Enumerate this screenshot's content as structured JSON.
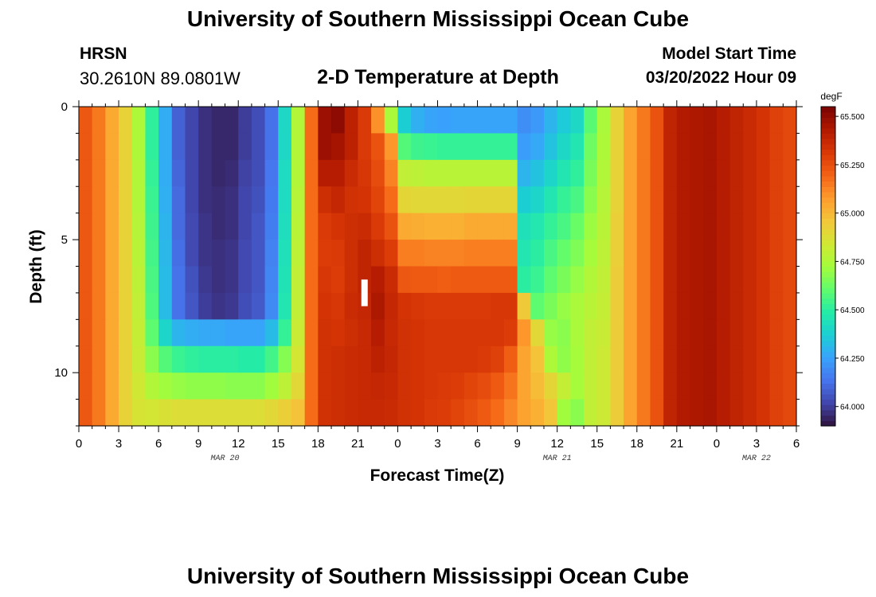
{
  "header": {
    "title": "University of Southern Mississippi Ocean Cube",
    "station": "HRSN",
    "coordinates": "30.2610N  89.0801W",
    "subtitle": "2-D Temperature at Depth",
    "model_start_label": "Model Start Time",
    "model_start_value": "03/20/2022 Hour 09"
  },
  "footer": {
    "title": "University of Southern Mississippi Ocean Cube"
  },
  "chart_data": {
    "type": "heatmap",
    "title": "2-D Temperature at Depth",
    "xlabel": "Forecast Time(Z)",
    "ylabel": "Depth (ft)",
    "x_range_hours": [
      0,
      54
    ],
    "x_hours": [
      0,
      1,
      2,
      3,
      4,
      5,
      6,
      7,
      8,
      9,
      10,
      11,
      12,
      13,
      14,
      15,
      16,
      17,
      18,
      19,
      20,
      21,
      22,
      23,
      24,
      25,
      26,
      27,
      28,
      29,
      30,
      31,
      32,
      33,
      34,
      35,
      36,
      37,
      38,
      39,
      40,
      41,
      42,
      43,
      44,
      45,
      46,
      47,
      48,
      49,
      50,
      51,
      52,
      53
    ],
    "x_tick_labels": [
      "0",
      "3",
      "6",
      "9",
      "12",
      "15",
      "18",
      "21",
      "0",
      "3",
      "6",
      "9",
      "12",
      "15",
      "18",
      "21",
      "0",
      "3",
      "6"
    ],
    "date_labels": [
      {
        "label": "MAR 20",
        "hour": 11
      },
      {
        "label": "MAR 21",
        "hour": 36
      },
      {
        "label": "MAR 22",
        "hour": 51
      }
    ],
    "y_range_ft": [
      0,
      12
    ],
    "y_reversed": true,
    "y_tick_labels": [
      "0",
      "5",
      "10"
    ],
    "depth_levels_ft": [
      0.5,
      1.5,
      2.5,
      3.5,
      4.5,
      5.5,
      6.5,
      7.5,
      8.5,
      9.5,
      10.5,
      11.5
    ],
    "colorbar": {
      "unit": "degF",
      "min": 63.9,
      "max": 65.55,
      "tick_labels": [
        "65.500",
        "65.250",
        "65.000",
        "64.750",
        "64.500",
        "64.250",
        "64.000"
      ],
      "tick_values": [
        65.5,
        65.25,
        65.0,
        64.75,
        64.5,
        64.25,
        64.0
      ],
      "colors": [
        "#30123b",
        "#4145ab",
        "#4675ed",
        "#39a2fc",
        "#1bcfd4",
        "#24eca6",
        "#61fc6c",
        "#a4fc3b",
        "#d1e834",
        "#f3c63a",
        "#fe9b2d",
        "#f36315",
        "#d93806",
        "#b11901",
        "#7a0403"
      ]
    },
    "temperature_degF": [
      [
        65.23,
        65.15,
        65.04,
        64.92,
        64.75,
        64.51,
        64.28,
        64.09,
        64.02,
        63.97,
        63.95,
        63.95,
        64.0,
        64.04,
        64.13,
        64.41,
        64.76,
        65.18,
        65.48,
        65.51,
        65.4,
        65.31,
        65.1,
        64.74,
        64.37,
        64.29,
        64.26,
        64.25,
        64.26,
        64.26,
        64.26,
        64.26,
        64.26,
        64.2,
        64.23,
        64.3,
        64.36,
        64.41,
        64.59,
        64.74,
        64.92,
        65.06,
        65.15,
        65.24,
        65.39,
        65.43,
        65.44,
        65.45,
        65.42,
        65.39,
        65.36,
        65.33,
        65.29,
        65.27
      ],
      [
        65.23,
        65.15,
        65.04,
        64.92,
        64.75,
        64.51,
        64.28,
        64.09,
        64.02,
        63.97,
        63.95,
        63.95,
        64.0,
        64.04,
        64.13,
        64.41,
        64.76,
        65.18,
        65.48,
        65.46,
        65.4,
        65.31,
        65.24,
        65.09,
        64.58,
        64.54,
        64.53,
        64.52,
        64.52,
        64.52,
        64.52,
        64.52,
        64.52,
        64.24,
        64.27,
        64.34,
        64.41,
        64.46,
        64.63,
        64.75,
        64.92,
        65.06,
        65.15,
        65.24,
        65.39,
        65.43,
        65.44,
        65.45,
        65.42,
        65.39,
        65.36,
        65.33,
        65.29,
        65.27
      ],
      [
        65.23,
        65.15,
        65.04,
        64.92,
        64.76,
        64.52,
        64.28,
        64.1,
        64.02,
        63.97,
        63.95,
        63.96,
        64.01,
        64.04,
        64.14,
        64.42,
        64.76,
        65.18,
        65.42,
        65.42,
        65.36,
        65.32,
        65.26,
        65.13,
        64.8,
        64.79,
        64.78,
        64.78,
        64.78,
        64.78,
        64.78,
        64.78,
        64.78,
        64.3,
        64.34,
        64.4,
        64.46,
        64.51,
        64.65,
        64.76,
        64.92,
        65.06,
        65.15,
        65.24,
        65.39,
        65.43,
        65.44,
        65.45,
        65.42,
        65.39,
        65.36,
        65.33,
        65.29,
        65.27
      ],
      [
        65.23,
        65.15,
        65.04,
        64.92,
        64.76,
        64.53,
        64.29,
        64.11,
        64.02,
        63.97,
        63.96,
        63.97,
        64.02,
        64.05,
        64.15,
        64.42,
        64.77,
        65.18,
        65.35,
        65.38,
        65.34,
        65.33,
        65.28,
        65.18,
        64.91,
        64.9,
        64.9,
        64.9,
        64.9,
        64.91,
        64.91,
        64.91,
        64.91,
        64.37,
        64.4,
        64.46,
        64.52,
        64.56,
        64.68,
        64.77,
        64.92,
        65.06,
        65.15,
        65.24,
        65.39,
        65.43,
        65.44,
        65.45,
        65.42,
        65.39,
        65.36,
        65.33,
        65.29,
        65.27
      ],
      [
        65.23,
        65.15,
        65.04,
        64.92,
        64.77,
        64.54,
        64.3,
        64.11,
        64.03,
        63.98,
        63.96,
        63.97,
        64.02,
        64.06,
        64.16,
        64.43,
        64.78,
        65.18,
        65.31,
        65.33,
        65.35,
        65.36,
        65.31,
        65.24,
        65.04,
        65.03,
        65.02,
        65.02,
        65.02,
        65.04,
        65.04,
        65.04,
        65.04,
        64.44,
        64.47,
        64.52,
        64.56,
        64.62,
        64.71,
        64.78,
        64.93,
        65.06,
        65.15,
        65.24,
        65.39,
        65.43,
        65.44,
        65.45,
        65.42,
        65.39,
        65.36,
        65.33,
        65.29,
        65.27
      ],
      [
        65.23,
        65.15,
        65.04,
        64.92,
        64.78,
        64.55,
        64.31,
        64.12,
        64.03,
        63.98,
        63.97,
        63.98,
        64.03,
        64.06,
        64.17,
        64.44,
        64.79,
        65.18,
        65.3,
        65.31,
        65.35,
        65.39,
        65.35,
        65.3,
        65.14,
        65.14,
        65.13,
        65.13,
        65.13,
        65.14,
        65.14,
        65.14,
        65.14,
        64.46,
        64.5,
        64.56,
        64.61,
        64.66,
        64.73,
        64.79,
        64.93,
        65.06,
        65.15,
        65.24,
        65.39,
        65.43,
        65.44,
        65.45,
        65.42,
        65.39,
        65.36,
        65.33,
        65.29,
        65.27
      ],
      [
        65.23,
        65.15,
        65.04,
        64.92,
        64.79,
        64.56,
        64.32,
        64.13,
        64.05,
        63.99,
        63.97,
        63.98,
        64.03,
        64.06,
        64.18,
        64.45,
        64.8,
        65.18,
        65.32,
        65.3,
        65.35,
        65.39,
        65.42,
        65.36,
        65.23,
        65.22,
        65.22,
        65.21,
        65.22,
        65.22,
        65.22,
        65.22,
        65.22,
        64.5,
        64.53,
        64.6,
        64.65,
        64.7,
        64.76,
        64.8,
        64.94,
        65.06,
        65.15,
        65.24,
        65.39,
        65.43,
        65.44,
        65.45,
        65.42,
        65.39,
        65.36,
        65.33,
        65.29,
        65.27
      ],
      [
        65.23,
        65.15,
        65.04,
        64.92,
        64.8,
        64.57,
        64.32,
        64.13,
        64.06,
        64.0,
        63.98,
        63.99,
        64.04,
        64.07,
        64.19,
        64.46,
        64.8,
        65.18,
        65.33,
        65.32,
        65.36,
        65.38,
        65.44,
        65.38,
        65.33,
        65.32,
        65.31,
        65.31,
        65.31,
        65.31,
        65.31,
        65.32,
        65.32,
        64.95,
        64.6,
        64.65,
        64.7,
        64.74,
        64.78,
        64.81,
        64.94,
        65.06,
        65.15,
        65.24,
        65.39,
        65.43,
        65.44,
        65.45,
        65.42,
        65.39,
        65.36,
        65.33,
        65.29,
        65.27
      ],
      [
        65.23,
        65.15,
        65.04,
        64.92,
        64.81,
        64.6,
        64.4,
        64.3,
        64.28,
        64.27,
        64.27,
        64.26,
        64.26,
        64.26,
        64.32,
        64.52,
        64.82,
        65.18,
        65.34,
        65.33,
        65.35,
        65.37,
        65.42,
        65.37,
        65.34,
        65.33,
        65.32,
        65.32,
        65.32,
        65.32,
        65.32,
        65.32,
        65.3,
        65.09,
        64.9,
        64.7,
        64.68,
        64.74,
        64.8,
        64.82,
        64.94,
        65.06,
        65.15,
        65.24,
        65.39,
        65.43,
        65.44,
        65.45,
        65.42,
        65.39,
        65.36,
        65.33,
        65.29,
        65.27
      ],
      [
        65.23,
        65.15,
        65.04,
        64.92,
        64.82,
        64.68,
        64.58,
        64.53,
        64.51,
        64.5,
        64.5,
        64.5,
        64.49,
        64.49,
        64.55,
        64.67,
        64.85,
        65.18,
        65.34,
        65.35,
        65.36,
        65.37,
        65.4,
        65.38,
        65.34,
        65.33,
        65.32,
        65.32,
        65.32,
        65.32,
        65.31,
        65.29,
        65.21,
        65.05,
        64.97,
        64.75,
        64.69,
        64.73,
        64.8,
        64.83,
        64.94,
        65.06,
        65.15,
        65.24,
        65.39,
        65.43,
        65.44,
        65.45,
        65.42,
        65.39,
        65.36,
        65.33,
        65.29,
        65.27
      ],
      [
        65.23,
        65.15,
        65.04,
        64.92,
        64.84,
        64.76,
        64.72,
        64.7,
        64.69,
        64.69,
        64.69,
        64.68,
        64.68,
        64.68,
        64.72,
        64.79,
        64.9,
        65.18,
        65.34,
        65.35,
        65.36,
        65.37,
        65.38,
        65.37,
        65.34,
        65.33,
        65.32,
        65.31,
        65.3,
        65.28,
        65.26,
        65.22,
        65.16,
        65.05,
        64.99,
        64.91,
        64.81,
        64.73,
        64.8,
        64.83,
        64.94,
        65.06,
        65.15,
        65.24,
        65.39,
        65.43,
        65.44,
        65.45,
        65.42,
        65.39,
        65.36,
        65.33,
        65.29,
        65.27
      ],
      [
        65.23,
        65.15,
        65.04,
        64.92,
        64.86,
        64.85,
        64.87,
        64.88,
        64.88,
        64.88,
        64.88,
        64.88,
        64.88,
        64.88,
        64.9,
        64.93,
        64.97,
        65.18,
        65.34,
        65.35,
        65.36,
        65.37,
        65.37,
        65.36,
        65.34,
        65.33,
        65.31,
        65.3,
        65.28,
        65.25,
        65.22,
        65.18,
        65.12,
        65.06,
        65.02,
        64.96,
        64.72,
        64.68,
        64.8,
        64.83,
        64.94,
        65.06,
        65.15,
        65.24,
        65.39,
        65.43,
        65.44,
        65.45,
        65.42,
        65.39,
        65.36,
        65.33,
        65.29,
        65.27
      ]
    ],
    "annotation": {
      "type": "marker",
      "hour": 21.5,
      "depth_ft_range": [
        6.5,
        7.5
      ],
      "color": "#ffffff"
    }
  }
}
